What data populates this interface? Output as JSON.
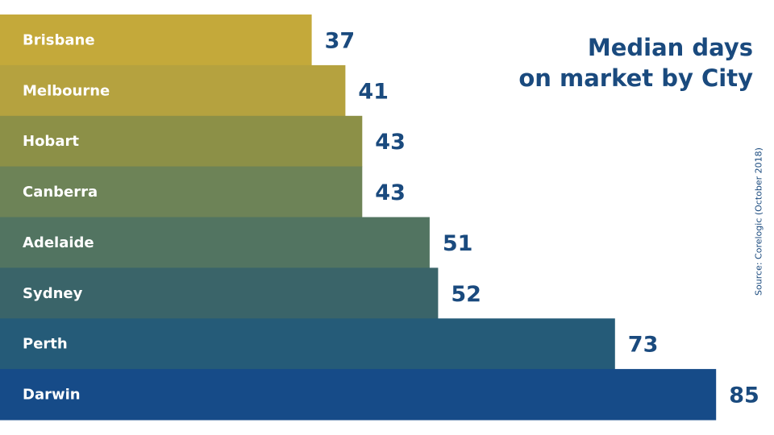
{
  "title_lines": [
    "Median days",
    "on market by City"
  ],
  "source": "Source: Corelogic (October 2018)",
  "colors": {
    "bars": [
      "#c4a93a",
      "#b5a23f",
      "#8c9047",
      "#6d8357",
      "#527461",
      "#3a6469",
      "#255b78",
      "#164b88"
    ],
    "value_text": "#1a4a7e",
    "bar_text": "#ffffff"
  },
  "chart_data": {
    "type": "bar",
    "orientation": "horizontal",
    "title": "Median days on market by City",
    "categories": [
      "Brisbane",
      "Melbourne",
      "Hobart",
      "Canberra",
      "Adelaide",
      "Sydney",
      "Perth",
      "Darwin"
    ],
    "values": [
      37,
      41,
      43,
      43,
      51,
      52,
      73,
      85
    ],
    "xlabel": "",
    "ylabel": "",
    "grid": false,
    "legend": "none"
  }
}
